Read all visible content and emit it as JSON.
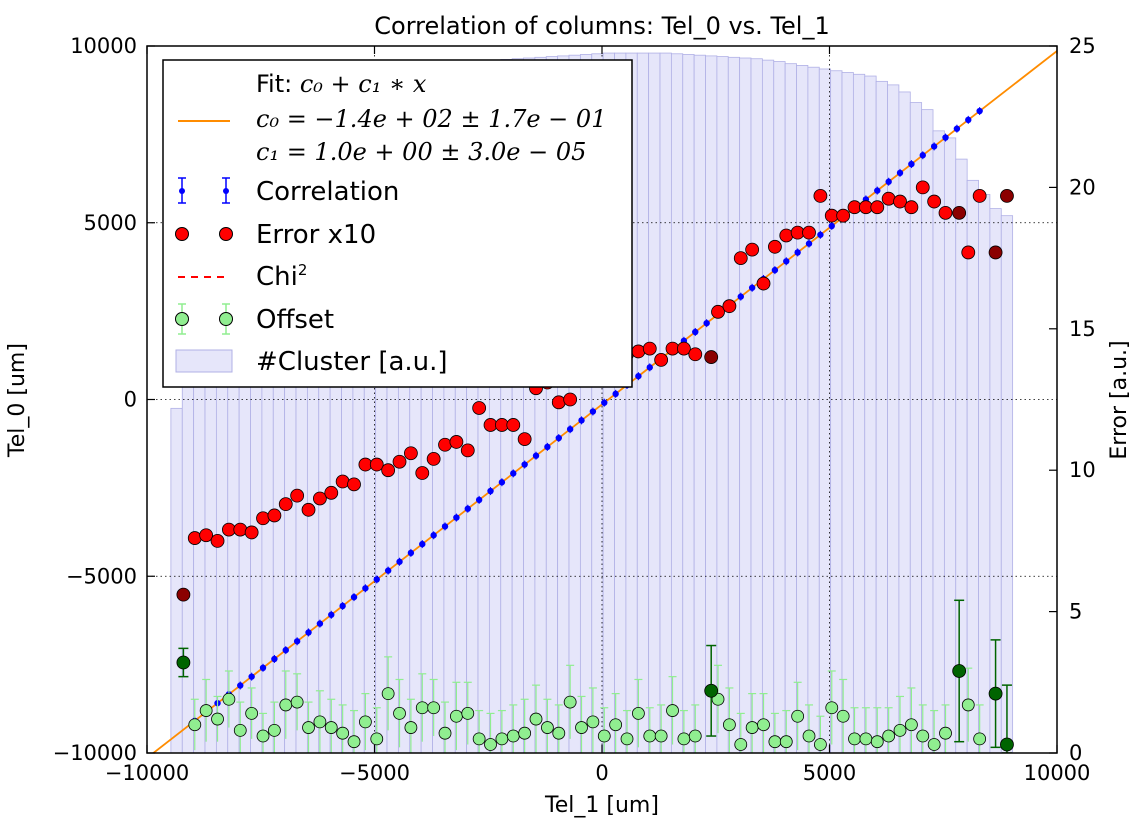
{
  "chart_data": {
    "type": "scatter",
    "title": "Correlation of columns: Tel_0 vs. Tel_1",
    "xlabel": "Tel_1 [um]",
    "ylabel": "Tel_0 [um]",
    "y2label": "Error [a.u.]",
    "xlim": [
      -10000,
      10000
    ],
    "ylim": [
      -10000,
      10000
    ],
    "y2lim": [
      0,
      25
    ],
    "xticks": [
      -10000,
      -5000,
      0,
      5000,
      10000
    ],
    "yticks": [
      -10000,
      -5000,
      0,
      5000,
      10000
    ],
    "y2ticks": [
      0,
      5,
      10,
      15,
      20,
      25
    ],
    "xtick_labels": [
      "−10000",
      "−5000",
      "0",
      "5000",
      "10000"
    ],
    "ytick_labels": [
      "−10000",
      "−5000",
      "0",
      "5000",
      "10000"
    ],
    "y2tick_labels": [
      "0",
      "5",
      "10",
      "15",
      "20",
      "25"
    ],
    "grid": "dotted",
    "legend_position": "top-left",
    "legend": {
      "fit_label": "Fit: ",
      "fit_formula": "c₀ + c₁ ∗ x",
      "fit_c0": "c₀ = −1.4e + 02 ± 1.7e − 01",
      "fit_c1": "c₁ = 1.0e + 00 ± 3.0e − 05",
      "correlation": "Correlation",
      "error": "Error x10",
      "chi2_base": "Chi",
      "chi2_sup": "2",
      "offset": "Offset",
      "cluster": "#Cluster [a.u.]"
    },
    "fit": {
      "c0": -140,
      "c1": 1.0
    },
    "colors": {
      "fit": "#ff8c00",
      "correlation": "#0000ff",
      "error": "#ff0000",
      "error_dark": "#8b0000",
      "offset": "#90ee90",
      "offset_dark": "#006400",
      "cluster": "#e6e6fa",
      "cluster_edge": "#b0b0e6"
    },
    "correlation_x": [
      -8950,
      -8700,
      -8450,
      -8200,
      -7950,
      -7700,
      -7450,
      -7200,
      -6950,
      -6700,
      -6450,
      -6200,
      -5950,
      -5700,
      -5450,
      -5200,
      -4950,
      -4700,
      -4450,
      -4200,
      -3950,
      -3700,
      -3450,
      -3200,
      -2950,
      -2700,
      -2450,
      -2200,
      -1950,
      -1700,
      -1450,
      -1200,
      -950,
      -700,
      -450,
      -200,
      50,
      300,
      550,
      800,
      1050,
      1300,
      1550,
      1800,
      2050,
      2300,
      2550,
      2800,
      3050,
      3300,
      3550,
      3800,
      4050,
      4300,
      4550,
      4800,
      5050,
      5300,
      5550,
      5800,
      6050,
      6300,
      6550,
      6800,
      7050,
      7300,
      7550,
      7800,
      8050,
      8300
    ],
    "cluster_x": [
      -9350,
      -9100,
      -8850,
      -8600,
      -8350,
      -8100,
      -7850,
      -7600,
      -7350,
      -7100,
      -6850,
      -6600,
      -6350,
      -6100,
      -5850,
      -5600,
      -5350,
      -5100,
      -4850,
      -4600,
      -4350,
      -4100,
      -3850,
      -3600,
      -3350,
      -3100,
      -2850,
      -2600,
      -2350,
      -2100,
      -1850,
      -1600,
      -1350,
      -1100,
      -850,
      -600,
      -350,
      -100,
      150,
      400,
      650,
      900,
      1150,
      1400,
      1650,
      1900,
      2150,
      2400,
      2650,
      2900,
      3150,
      3400,
      3650,
      3900,
      4150,
      4400,
      4650,
      4900,
      5150,
      5400,
      5650,
      5900,
      6150,
      6400,
      6650,
      6900,
      7150,
      7400,
      7650,
      7900,
      8150,
      8400,
      8650,
      8900
    ],
    "cluster_y": [
      -250,
      1000,
      2000,
      3200,
      4200,
      5000,
      5800,
      6400,
      7000,
      7500,
      7900,
      8200,
      8500,
      8700,
      8900,
      9000,
      9100,
      9200,
      9250,
      9300,
      9350,
      9400,
      9450,
      9500,
      9520,
      9540,
      9560,
      9580,
      9600,
      9620,
      9640,
      9660,
      9680,
      9700,
      9720,
      9740,
      9760,
      9780,
      9800,
      9800,
      9800,
      9800,
      9800,
      9800,
      9780,
      9760,
      9740,
      9720,
      9700,
      9680,
      9660,
      9640,
      9600,
      9560,
      9500,
      9450,
      9400,
      9350,
      9300,
      9250,
      9200,
      9150,
      9000,
      8900,
      8700,
      8400,
      8200,
      7600,
      7400,
      6800,
      6200,
      5800,
      5400,
      5200
    ],
    "error_x": [
      -9200,
      -8950,
      -8700,
      -8450,
      -8200,
      -7950,
      -7700,
      -7450,
      -7200,
      -6950,
      -6700,
      -6450,
      -6200,
      -5950,
      -5700,
      -5450,
      -5200,
      -4950,
      -4700,
      -4450,
      -4200,
      -3950,
      -3700,
      -3450,
      -3200,
      -2950,
      -2700,
      -2450,
      -2200,
      -1950,
      -1700,
      -1450,
      -1200,
      -950,
      -700,
      -450,
      -200,
      50,
      300,
      550,
      800,
      1050,
      1300,
      1550,
      1800,
      2050,
      2300,
      2550,
      2800,
      3050,
      3300,
      3550,
      3800,
      4050,
      4300,
      4550,
      4800,
      5050,
      5300,
      5550,
      5800,
      6050,
      6300,
      6550,
      6800,
      7050,
      7300,
      7550,
      7800,
      8050,
      8300,
      8550,
      8800
    ],
    "error_y": [
      5.6,
      7.6,
      7.7,
      7.5,
      7.9,
      7.9,
      7.8,
      8.3,
      8.4,
      8.8,
      9.1,
      8.6,
      9.0,
      9.2,
      9.6,
      9.5,
      10.2,
      10.2,
      10.0,
      10.3,
      10.6,
      9.9,
      10.4,
      10.9,
      11.0,
      10.7,
      12.2,
      11.6,
      11.6,
      11.6,
      11.1,
      13.0,
      13.0,
      12.4,
      12.5,
      13.6,
      13.6,
      13.3,
      13.9,
      14.0,
      14.1,
      14.3,
      14.0,
      14.3,
      14.3,
      14.1,
      15.7,
      15.6,
      15.8,
      17.5,
      17.8,
      16.6,
      17.9,
      18.3,
      18.4,
      18.4,
      19.7,
      19.0,
      19.0,
      19.3,
      19.3,
      19.3,
      19.6,
      19.5,
      19.3,
      20.0,
      19.5,
      19.1,
      18.9,
      17.7,
      19.7,
      19.5,
      19.7
    ],
    "error_y_final": [
      5.6,
      7.6,
      7.7,
      7.5,
      7.9,
      7.9,
      7.8,
      8.3,
      8.4,
      8.8,
      9.1,
      8.6,
      9.0,
      9.2,
      9.6,
      9.5,
      10.2,
      10.2,
      10.0,
      10.3,
      10.6,
      9.9,
      10.4,
      10.9,
      11.0,
      10.7,
      12.2,
      11.6,
      11.6,
      11.6,
      11.1,
      12.9,
      13.1,
      12.4,
      12.5,
      13.7,
      13.7,
      13.4,
      14.0,
      14.1,
      14.2,
      14.3,
      13.9,
      14.3,
      14.3,
      14.1,
      15.7,
      15.6,
      15.8,
      17.5,
      17.8,
      16.6,
      17.9,
      18.3,
      18.4,
      18.4,
      19.7,
      19.0,
      19.0,
      19.3,
      19.3,
      19.3,
      19.6,
      19.5,
      19.3,
      20.0,
      19.5,
      19.1,
      18.9,
      17.7,
      19.7,
      19.5,
      19.7
    ],
    "error_dark_points": [
      {
        "x": -9200,
        "y": 5.6
      },
      {
        "x": 2400,
        "y": 14.0
      },
      {
        "x": 7850,
        "y": 19.1
      },
      {
        "x": 8650,
        "y": 17.7
      },
      {
        "x": 8900,
        "y": 19.7
      }
    ],
    "offset_x": [
      -9200,
      -8950,
      -8700,
      -8450,
      -8200,
      -7950,
      -7700,
      -7450,
      -7200,
      -6950,
      -6700,
      -6450,
      -6200,
      -5950,
      -5700,
      -5450,
      -5200,
      -4950,
      -4700,
      -4450,
      -4200,
      -3950,
      -3700,
      -3450,
      -3200,
      -2950,
      -2700,
      -2450,
      -2200,
      -1950,
      -1700,
      -1450,
      -1200,
      -950,
      -700,
      -450,
      -200,
      50,
      300,
      550,
      800,
      1050,
      1300,
      1550,
      1800,
      2050,
      2300,
      2550,
      2800,
      3050,
      3300,
      3550,
      3800,
      4050,
      4300,
      4550,
      4800,
      5050,
      5300,
      5550,
      5800,
      6050,
      6300,
      6550,
      6800,
      7050,
      7300,
      7550,
      7800,
      8050,
      8300,
      8550,
      8800
    ],
    "offset_y": [
      3.2,
      1.0,
      1.5,
      1.2,
      1.9,
      0.8,
      1.4,
      0.6,
      0.8,
      1.7,
      1.8,
      0.9,
      1.1,
      0.9,
      0.7,
      0.4,
      1.1,
      0.5,
      2.1,
      1.4,
      0.9,
      1.6,
      1.6,
      0.7,
      1.3,
      1.4,
      0.5,
      0.3,
      0.5,
      0.6,
      0.7,
      1.2,
      0.9,
      0.7,
      1.8,
      0.9,
      1.1,
      0.6,
      1.0,
      0.5,
      1.4,
      0.6,
      0.6,
      1.5,
      0.5,
      0.6,
      1.3,
      1.9,
      1.0,
      0.3,
      0.9,
      1.0,
      0.4,
      0.4,
      1.3,
      0.6,
      0.3,
      1.6,
      1.3,
      0.5,
      0.5,
      0.4,
      0.6,
      0.8,
      1.0,
      0.6,
      0.3,
      0.7,
      0.4,
      1.7,
      0.5,
      2.0,
      0.9
    ],
    "offset_err": [
      0.7,
      0.9,
      1.1,
      0.8,
      1.0,
      1.0,
      0.9,
      0.8,
      1.0,
      1.2,
      1.0,
      0.9,
      1.1,
      1.0,
      1.0,
      1.1,
      1.0,
      1.1,
      1.3,
      1.2,
      1.0,
      1.2,
      1.0,
      1.1,
      1.2,
      1.1,
      1.0,
      1.1,
      1.0,
      1.1,
      1.2,
      1.2,
      1.0,
      1.0,
      1.3,
      1.1,
      1.2,
      1.0,
      1.1,
      1.0,
      1.2,
      1.0,
      1.1,
      1.2,
      1.0,
      1.1,
      1.2,
      1.2,
      1.3,
      1.1,
      1.2,
      1.1,
      1.0,
      1.1,
      1.2,
      1.1,
      1.0,
      1.3,
      1.3,
      1.1,
      1.1,
      1.2,
      1.0,
      1.2,
      1.3,
      1.1,
      1.2,
      1.0,
      1.1,
      1.3,
      1.2,
      1.3,
      1.1
    ],
    "offset_dark_points": [
      {
        "x": -9200,
        "y": 3.2,
        "err": 0.5
      },
      {
        "x": 2400,
        "y": 2.2,
        "err": 1.6
      },
      {
        "x": 7850,
        "y": 2.9,
        "err": 2.5
      },
      {
        "x": 8650,
        "y": 2.1,
        "err": 1.9
      },
      {
        "x": 8900,
        "y": 0.3,
        "err": 2.1
      }
    ]
  }
}
